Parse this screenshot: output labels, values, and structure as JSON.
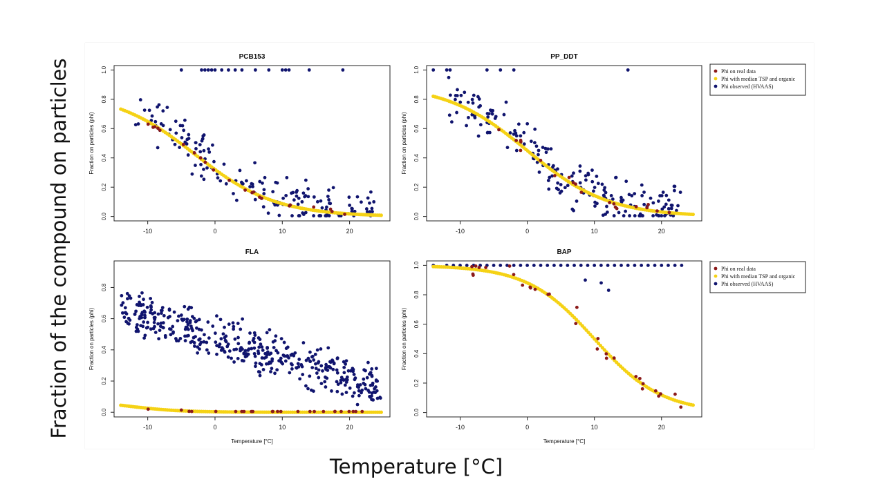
{
  "slide": {
    "ylabel": "Fraction of the compound on particles",
    "xlabel": "Temperature [°C]"
  },
  "colors": {
    "real": "#8b1a1a",
    "model": "#f5d215",
    "observed": "#10146e"
  },
  "legend": {
    "entries": [
      {
        "label": "Phi on real data",
        "color": "#8b1a1a"
      },
      {
        "label": "Phi with median TSP and organic",
        "color": "#f5d215"
      },
      {
        "label": "Phi observed (HVAAS)",
        "color": "#10146e"
      }
    ]
  },
  "chart_data": [
    {
      "type": "scatter",
      "title": "PCB153",
      "xlabel": "",
      "ylabel": "Fraction on particles (phi)",
      "xlim": [
        -15,
        26
      ],
      "ylim": [
        -0.03,
        1.03
      ],
      "xticks": [
        -10,
        0,
        10,
        20
      ],
      "yticks": [
        0.0,
        0.2,
        0.4,
        0.6,
        0.8,
        1.0
      ],
      "model": {
        "name": "Phi with median TSP and organic",
        "x_range": [
          -14,
          25
        ],
        "logistic": {
          "top": 0.85,
          "mid": -3,
          "scale": 6
        }
      },
      "observed_top": [
        -5,
        -2,
        -1.5,
        -1,
        -0.5,
        0,
        1,
        2,
        3,
        4,
        6,
        8,
        10,
        10.5,
        11,
        14,
        19
      ],
      "observed_scatter": {
        "n": 170,
        "x_range": [
          -12,
          24
        ],
        "noise": 0.14
      },
      "real": {
        "name": "Phi on real data",
        "n": 22,
        "x_range": [
          -10,
          21
        ],
        "noise": 0.05
      }
    },
    {
      "type": "scatter",
      "title": "PP_DDT",
      "xlabel": "",
      "ylabel": "Fraction on particles (phi)",
      "xlim": [
        -15,
        26
      ],
      "ylim": [
        -0.03,
        1.03
      ],
      "xticks": [
        -10,
        0,
        10,
        20
      ],
      "yticks": [
        0.0,
        0.2,
        0.4,
        0.6,
        0.8,
        1.0
      ],
      "model": {
        "name": "Phi with median TSP and organic",
        "x_range": [
          -14,
          25
        ],
        "logistic": {
          "top": 0.9,
          "mid": 0,
          "scale": 6
        }
      },
      "observed_top": [
        -14,
        -12,
        -11.5,
        -6,
        -4,
        -2,
        15
      ],
      "observed_scatter": {
        "n": 200,
        "x_range": [
          -12,
          23
        ],
        "noise": 0.15
      },
      "real": {
        "name": "Phi on real data",
        "n": 20,
        "x_range": [
          -6,
          23
        ],
        "noise": 0.05
      }
    },
    {
      "type": "scatter",
      "title": "FLA",
      "xlabel": "Temperature [°C]",
      "ylabel": "Fraction on particles (phi)",
      "xlim": [
        -15,
        26
      ],
      "ylim": [
        -0.03,
        0.97
      ],
      "xticks": [
        -10,
        0,
        10,
        20
      ],
      "yticks": [
        0.0,
        0.2,
        0.4,
        0.6,
        0.8
      ],
      "model": {
        "name": "Phi with median TSP and organic",
        "x_range": [
          -14,
          25
        ],
        "logistic": {
          "top": 0.08,
          "mid": -13,
          "scale": 4
        }
      },
      "observed_top": [],
      "observed_scatter": {
        "n": 430,
        "x_range": [
          -14,
          25
        ],
        "noise": 0.13
      },
      "real": {
        "name": "Phi on real data",
        "n": 25,
        "x_range": [
          -10,
          22
        ],
        "noise": 0.01
      }
    },
    {
      "type": "scatter",
      "title": "BAP",
      "xlabel": "Temperature [°C]",
      "ylabel": "Fraction on particles (phi)",
      "xlim": [
        -15,
        26
      ],
      "ylim": [
        -0.03,
        1.03
      ],
      "xticks": [
        -10,
        0,
        10,
        20
      ],
      "yticks": [
        0.0,
        0.2,
        0.4,
        0.6,
        0.8,
        1.0
      ],
      "model": {
        "name": "Phi with median TSP and organic",
        "x_range": [
          -14,
          25
        ],
        "logistic": {
          "top": 1.0,
          "mid": 10,
          "scale": 5
        }
      },
      "observed_top": [
        -14,
        -12,
        -11,
        -10,
        -9,
        -8,
        -7,
        -6,
        -5,
        -4,
        -3,
        -2,
        -1,
        0,
        1,
        2,
        3,
        4,
        5,
        6,
        7,
        8,
        9,
        10,
        11,
        12,
        13,
        14,
        15,
        16,
        17,
        18,
        19,
        20,
        21,
        22,
        23
      ],
      "observed_scatter": {
        "n": 3,
        "x_range": [
          8,
          16
        ],
        "noise": 0.3
      },
      "real": {
        "name": "Phi on real data",
        "n": 30,
        "x_range": [
          -10,
          23
        ],
        "noise": 0.1
      }
    }
  ]
}
